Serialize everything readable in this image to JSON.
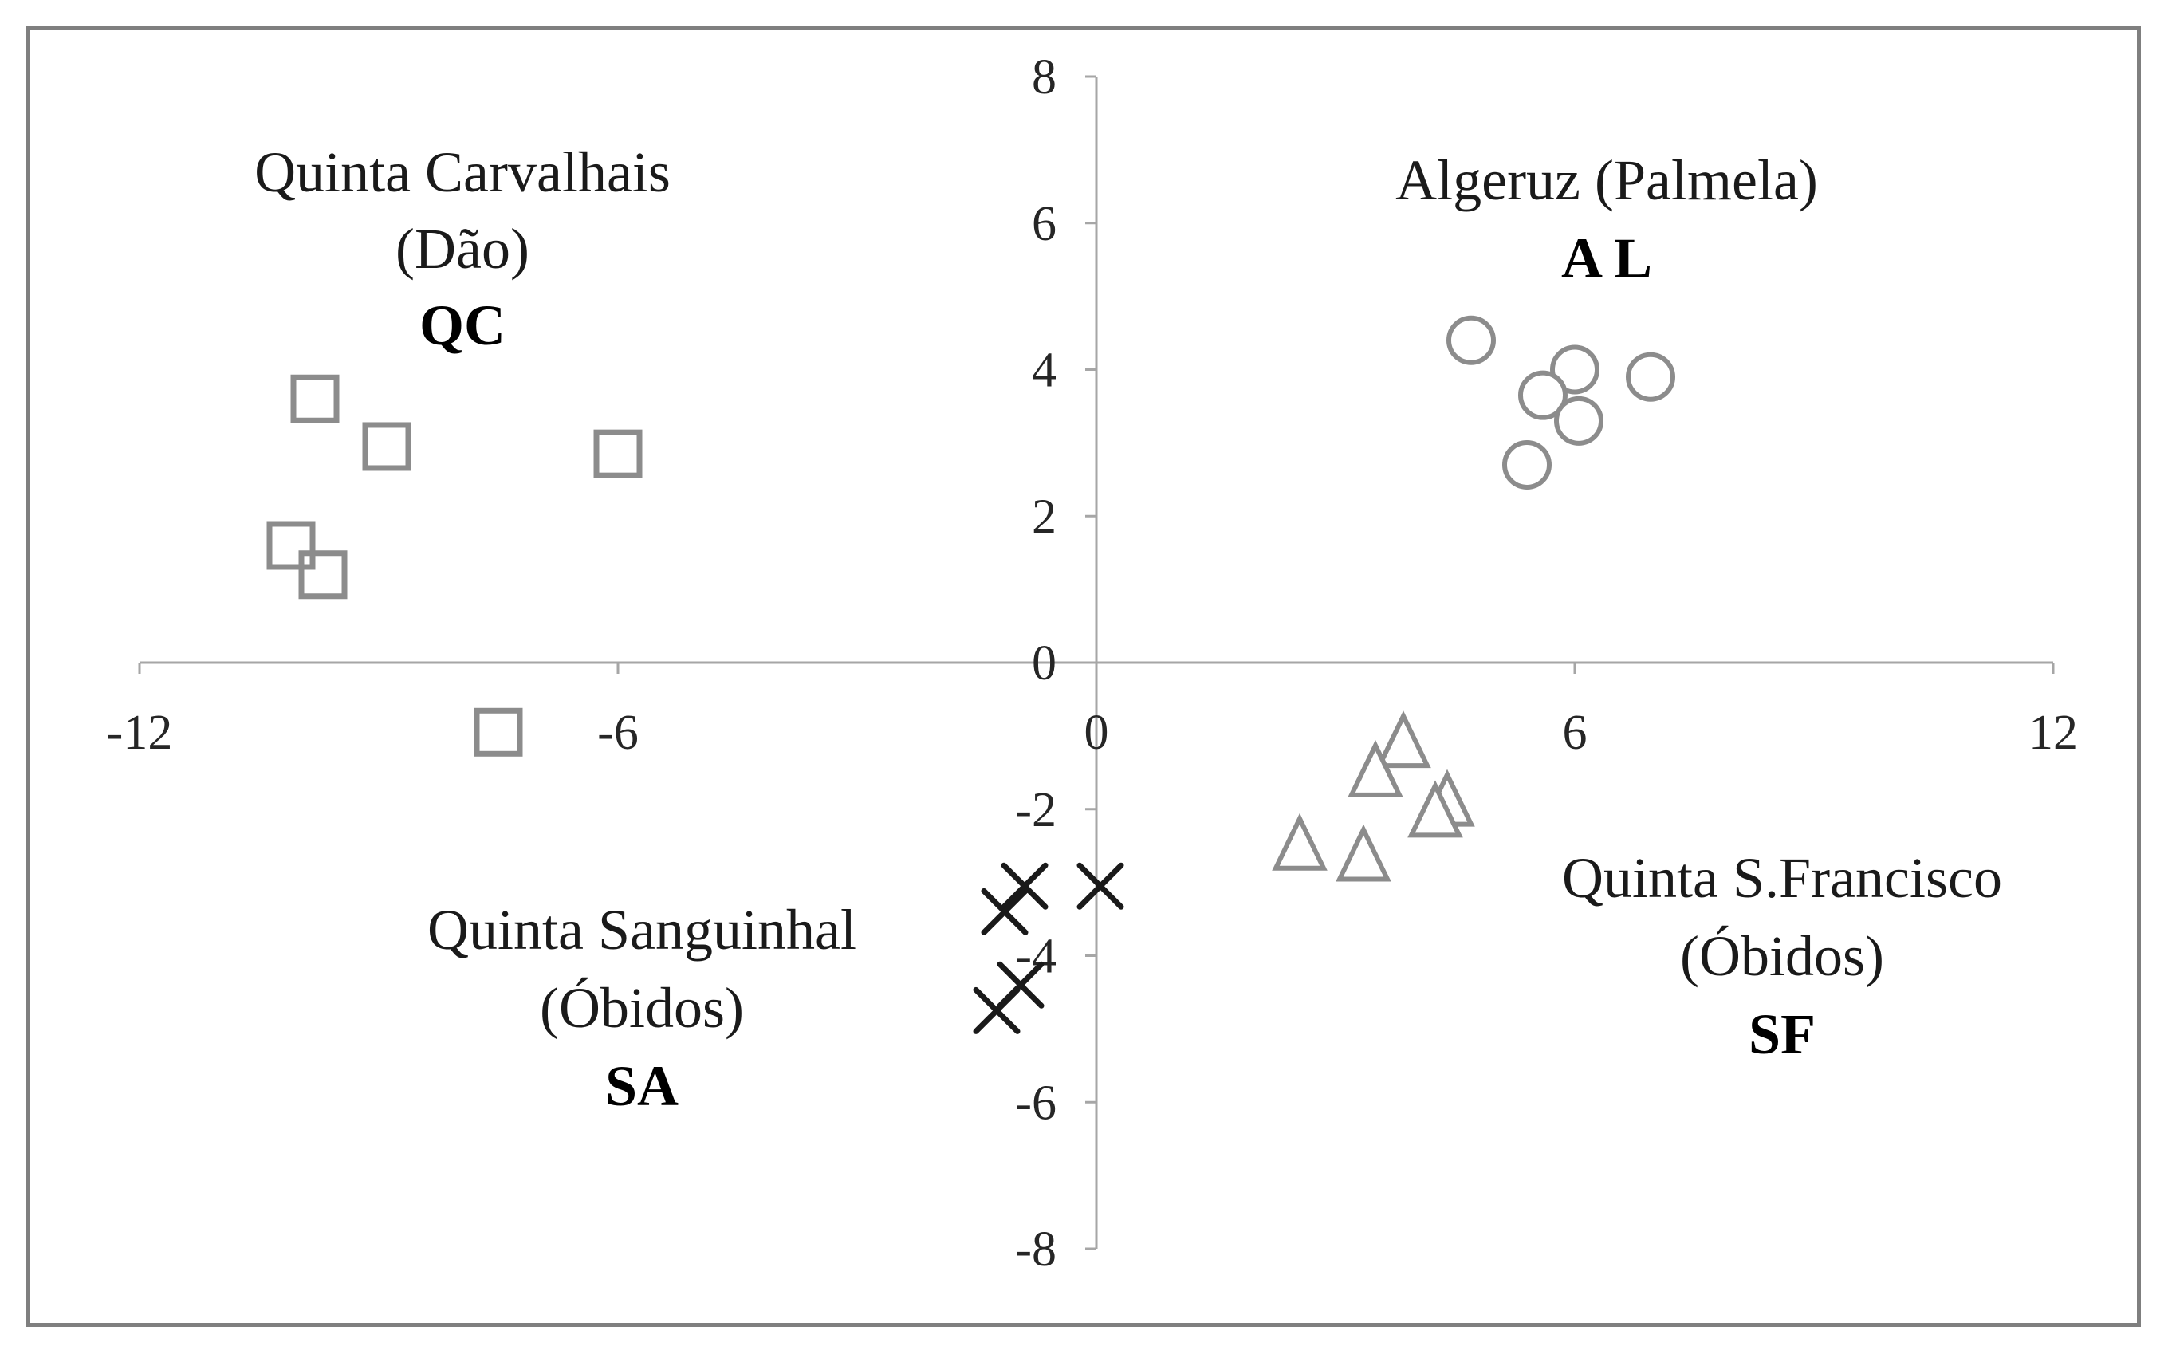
{
  "chart_data": {
    "type": "scatter",
    "xlim": [
      -12,
      12
    ],
    "ylim": [
      -8,
      8
    ],
    "x_ticks": [
      -12,
      -6,
      0,
      6,
      12
    ],
    "y_ticks": [
      8,
      6,
      4,
      2,
      0,
      -2,
      -4,
      -6,
      -8
    ],
    "grid": false,
    "legend": "none",
    "colors": {
      "gray_marker": "#8c8c8c",
      "black_marker": "#1a1a1a",
      "axis": "#a6a6a6",
      "frame": "#7f7f7f"
    },
    "series": [
      {
        "marker": "square",
        "color": "#8c8c8c",
        "label": {
          "name_lines": [
            "Quinta Carvalhais",
            "(Dão)"
          ],
          "code": "QC"
        },
        "points": [
          {
            "x": -9.8,
            "y": 3.6
          },
          {
            "x": -8.9,
            "y": 2.95
          },
          {
            "x": -6.0,
            "y": 2.85
          },
          {
            "x": -10.1,
            "y": 1.6
          },
          {
            "x": -9.7,
            "y": 1.2
          },
          {
            "x": -7.5,
            "y": -0.95
          }
        ]
      },
      {
        "marker": "circle",
        "color": "#8c8c8c",
        "label": {
          "name_lines": [
            "Algeruz (Palmela)"
          ],
          "code": "A L"
        },
        "points": [
          {
            "x": 4.7,
            "y": 4.4
          },
          {
            "x": 6.0,
            "y": 4.0
          },
          {
            "x": 6.95,
            "y": 3.9
          },
          {
            "x": 5.6,
            "y": 3.65
          },
          {
            "x": 6.05,
            "y": 3.3
          },
          {
            "x": 5.4,
            "y": 2.7
          }
        ]
      },
      {
        "marker": "triangle",
        "color": "#8c8c8c",
        "label": {
          "name_lines": [
            "Quinta S.Francisco",
            "(Óbidos)"
          ],
          "code": "SF"
        },
        "points": [
          {
            "x": 3.85,
            "y": -1.1
          },
          {
            "x": 3.5,
            "y": -1.5
          },
          {
            "x": 4.4,
            "y": -1.9
          },
          {
            "x": 4.25,
            "y": -2.05
          },
          {
            "x": 2.55,
            "y": -2.5
          },
          {
            "x": 3.35,
            "y": -2.65
          }
        ]
      },
      {
        "marker": "x",
        "color": "#1a1a1a",
        "label": {
          "name_lines": [
            "Quinta Sanguinhal",
            "(Óbidos)"
          ],
          "code": "SA"
        },
        "points": [
          {
            "x": -0.9,
            "y": -3.05
          },
          {
            "x": 0.05,
            "y": -3.05
          },
          {
            "x": -1.15,
            "y": -3.4
          },
          {
            "x": -0.95,
            "y": -4.4
          },
          {
            "x": -1.25,
            "y": -4.75
          }
        ]
      }
    ]
  }
}
